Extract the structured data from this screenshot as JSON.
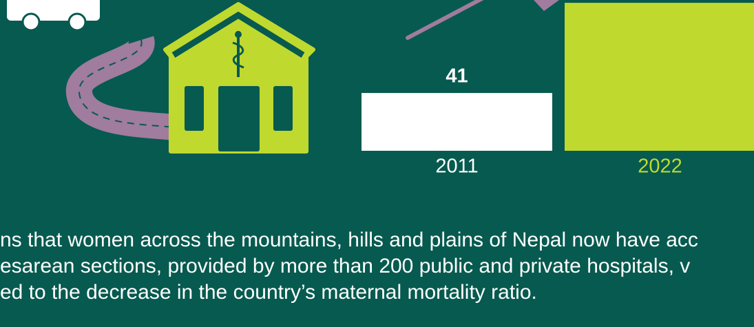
{
  "chart_data": {
    "type": "bar",
    "categories": [
      "2011",
      "2022"
    ],
    "values": [
      41,
      105
    ],
    "value_labels": [
      "41",
      null
    ],
    "colors": [
      "#ffffff",
      "#c0d92f"
    ],
    "ylim": [
      0,
      107
    ]
  },
  "paragraph": {
    "lines": [
      "ns that women across the mountains, hills and plains of Nepal now have acc",
      "esarean sections, provided by more than 200 public and private hospitals, v",
      "ed to the decrease in the country’s maternal mortality ratio."
    ]
  }
}
